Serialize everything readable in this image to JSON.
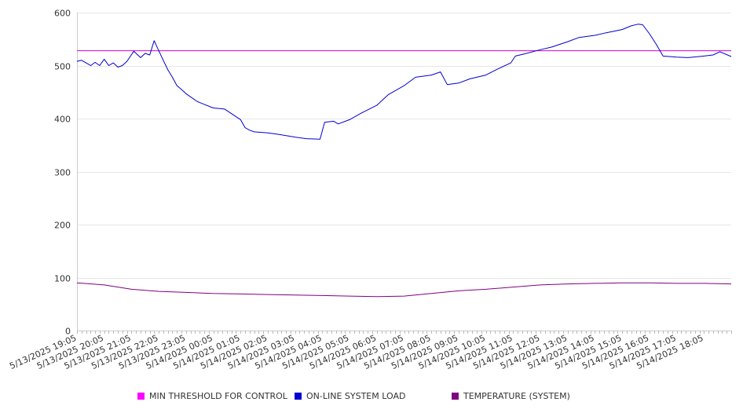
{
  "chart_data": {
    "type": "line",
    "title": "",
    "xlabel": "",
    "ylabel": "",
    "ylim": [
      0,
      600
    ],
    "yticks": [
      0,
      100,
      200,
      300,
      400,
      500,
      600
    ],
    "xlim": [
      "5/13/2025 19:05",
      "5/14/2025 19:05"
    ],
    "x_tick_labels": [
      "5/13/2025 19:05",
      "5/13/2025 20:05",
      "5/13/2025 21:05",
      "5/13/2025 22:05",
      "5/13/2025 23:05",
      "5/14/2025 00:05",
      "5/14/2025 01:05",
      "5/14/2025 02:05",
      "5/14/2025 03:05",
      "5/14/2025 04:05",
      "5/14/2025 05:05",
      "5/14/2025 06:05",
      "5/14/2025 07:05",
      "5/14/2025 08:05",
      "5/14/2025 09:05",
      "5/14/2025 10:05",
      "5/14/2025 11:05",
      "5/14/2025 12:05",
      "5/14/2025 13:05",
      "5/14/2025 14:05",
      "5/14/2025 15:05",
      "5/14/2025 16:05",
      "5/14/2025 17:05",
      "5/14/2025 18:05"
    ],
    "grid": "horizontal",
    "legend_position": "bottom",
    "series": [
      {
        "name": "MIN THRESHOLD FOR CONTROL",
        "color": "#d400d4",
        "x": [
          "5/13/2025 19:05",
          "5/14/2025 19:05"
        ],
        "y": [
          528,
          528
        ]
      },
      {
        "name": "ON-LINE SYSTEM LOAD",
        "color": "#0000d0",
        "x": [
          "5/13/2025 19:05",
          "5/13/2025 19:15",
          "5/13/2025 19:25",
          "5/13/2025 19:35",
          "5/13/2025 19:45",
          "5/13/2025 19:55",
          "5/13/2025 20:05",
          "5/13/2025 20:15",
          "5/13/2025 20:25",
          "5/13/2025 20:35",
          "5/13/2025 20:45",
          "5/13/2025 20:55",
          "5/13/2025 21:10",
          "5/13/2025 21:25",
          "5/13/2025 21:35",
          "5/13/2025 21:45",
          "5/13/2025 21:55",
          "5/13/2025 22:05",
          "5/13/2025 22:15",
          "5/13/2025 22:25",
          "5/13/2025 22:35",
          "5/13/2025 22:45",
          "5/13/2025 22:55",
          "5/13/2025 23:05",
          "5/13/2025 23:30",
          "5/14/2025 00:05",
          "5/14/2025 00:30",
          "5/14/2025 01:05",
          "5/14/2025 01:15",
          "5/14/2025 01:25",
          "5/14/2025 01:35",
          "5/14/2025 02:05",
          "5/14/2025 02:30",
          "5/14/2025 03:05",
          "5/14/2025 03:30",
          "5/14/2025 04:00",
          "5/14/2025 04:10",
          "5/14/2025 04:30",
          "5/14/2025 04:40",
          "5/14/2025 05:05",
          "5/14/2025 05:30",
          "5/14/2025 06:05",
          "5/14/2025 06:30",
          "5/14/2025 07:05",
          "5/14/2025 07:30",
          "5/14/2025 08:05",
          "5/14/2025 08:25",
          "5/14/2025 08:40",
          "5/14/2025 09:05",
          "5/14/2025 09:30",
          "5/14/2025 10:05",
          "5/14/2025 10:30",
          "5/14/2025 11:00",
          "5/14/2025 11:10",
          "5/14/2025 11:30",
          "5/14/2025 12:05",
          "5/14/2025 12:30",
          "5/14/2025 13:05",
          "5/14/2025 13:30",
          "5/14/2025 14:05",
          "5/14/2025 14:30",
          "5/14/2025 15:05",
          "5/14/2025 15:25",
          "5/14/2025 15:40",
          "5/14/2025 15:50",
          "5/14/2025 16:05",
          "5/14/2025 16:20",
          "5/14/2025 16:35",
          "5/14/2025 17:05",
          "5/14/2025 17:30",
          "5/14/2025 18:05",
          "5/14/2025 18:25",
          "5/14/2025 18:40",
          "5/14/2025 19:05"
        ],
        "y": [
          508,
          510,
          505,
          500,
          506,
          500,
          512,
          500,
          505,
          497,
          500,
          508,
          527,
          515,
          523,
          520,
          547,
          528,
          510,
          492,
          478,
          462,
          455,
          447,
          432,
          420,
          418,
          398,
          383,
          378,
          375,
          373,
          370,
          365,
          362,
          361,
          393,
          395,
          390,
          398,
          410,
          425,
          445,
          462,
          478,
          482,
          488,
          464,
          467,
          475,
          482,
          493,
          505,
          518,
          522,
          530,
          535,
          545,
          553,
          557,
          562,
          568,
          575,
          578,
          577,
          560,
          540,
          518,
          516,
          515,
          518,
          520,
          526,
          517
        ]
      },
      {
        "name": "TEMPERATURE (SYSTEM)",
        "color": "#800080",
        "x": [
          "5/13/2025 19:05",
          "5/13/2025 20:05",
          "5/13/2025 21:05",
          "5/13/2025 22:05",
          "5/13/2025 23:05",
          "5/14/2025 00:05",
          "5/14/2025 01:05",
          "5/14/2025 02:05",
          "5/14/2025 03:05",
          "5/14/2025 04:05",
          "5/14/2025 05:05",
          "5/14/2025 06:05",
          "5/14/2025 07:05",
          "5/14/2025 08:05",
          "5/14/2025 09:05",
          "5/14/2025 10:05",
          "5/14/2025 11:05",
          "5/14/2025 12:05",
          "5/14/2025 13:05",
          "5/14/2025 14:05",
          "5/14/2025 15:05",
          "5/14/2025 16:05",
          "5/14/2025 17:05",
          "5/14/2025 18:05",
          "5/14/2025 19:05"
        ],
        "y": [
          90,
          86,
          78,
          74,
          72,
          70,
          69,
          68,
          67,
          66,
          65,
          64,
          65,
          70,
          75,
          78,
          82,
          86,
          88,
          89,
          90,
          90,
          89,
          89,
          88
        ]
      }
    ]
  }
}
